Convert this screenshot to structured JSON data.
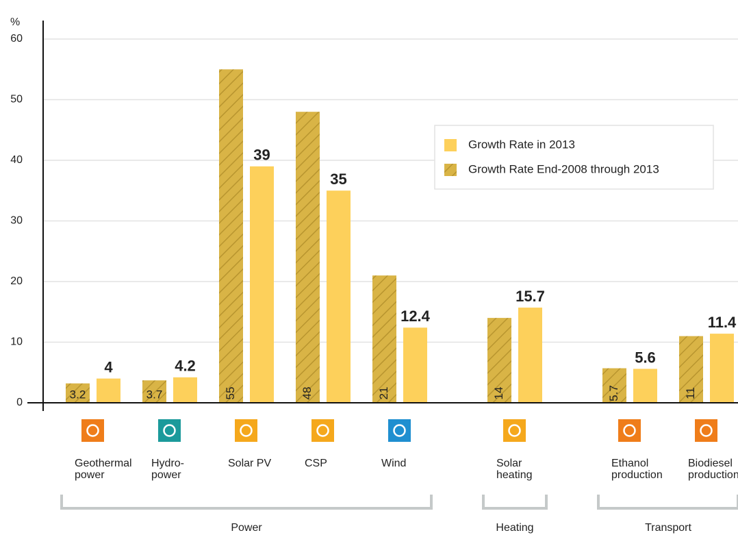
{
  "chart_data": {
    "type": "bar",
    "y_label": "%",
    "ylim": [
      0,
      60
    ],
    "yticks": [
      0,
      10,
      20,
      30,
      40,
      50,
      60
    ],
    "grid": true,
    "categories": [
      [
        "Geothermal",
        "power"
      ],
      [
        "Hydro-",
        "power"
      ],
      [
        "Solar PV"
      ],
      [
        "CSP"
      ],
      [
        "Wind"
      ],
      [
        "Solar",
        "heating"
      ],
      [
        "Ethanol",
        "production"
      ],
      [
        "Biodiesel",
        "production"
      ]
    ],
    "groups": [
      {
        "label": "Power",
        "span": 5
      },
      {
        "label": "Heating",
        "span": 1
      },
      {
        "label": "Transport",
        "span": 2
      }
    ],
    "legend": "upper right",
    "series": [
      {
        "name": "Growth Rate End-2008 through 2013",
        "color": "#d9b446",
        "hatch": true,
        "values": [
          3.2,
          3.7,
          55,
          48,
          21,
          14,
          5.7,
          11
        ]
      },
      {
        "name": "Growth Rate in 2013",
        "color": "#fdd05b",
        "hatch": false,
        "values": [
          4,
          4.2,
          39,
          35,
          12.4,
          15.7,
          5.6,
          11.4
        ]
      }
    ]
  }
}
